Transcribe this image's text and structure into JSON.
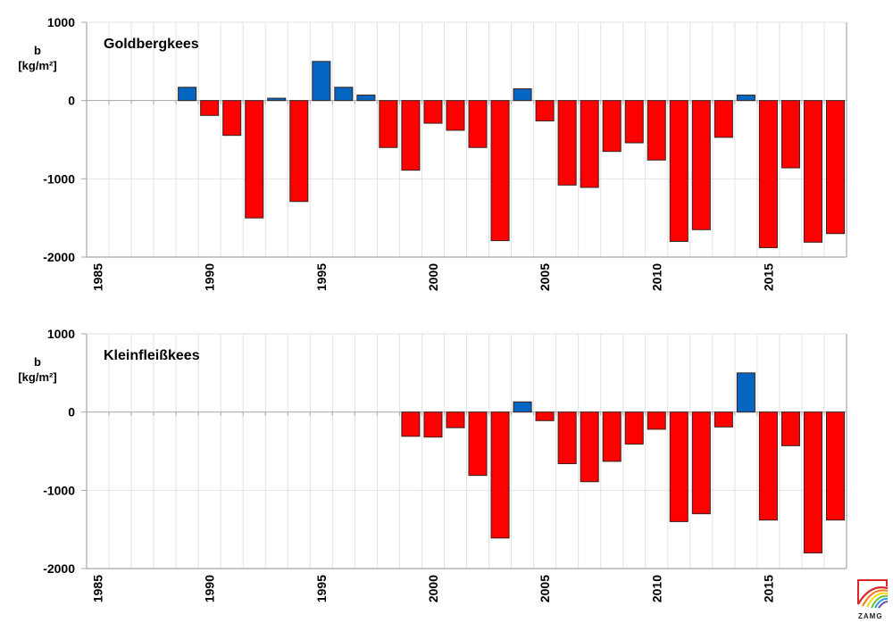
{
  "colors": {
    "positive": "#0566c2",
    "negative": "#ff0000",
    "bar_border": "#3a2020",
    "grid": "#e2e2e2",
    "axis": "#a6a6a6"
  },
  "logo": {
    "text": "ZAMG",
    "icon": "zamg-rainbow-logo-icon"
  },
  "chart_data": [
    {
      "type": "bar",
      "title": "Goldbergkees",
      "ylabel_line1": "b",
      "ylabel_line2": "[kg/m²]",
      "xlabel": "",
      "ylim": [
        -2000,
        1000
      ],
      "yticks": [
        1000,
        0,
        -1000,
        -2000
      ],
      "ytick_labels": [
        "1000",
        "0",
        "-1000",
        "-2000"
      ],
      "xtick_labels": [
        "1985",
        "1990",
        "1995",
        "2000",
        "2005",
        "2010",
        "2015"
      ],
      "grid": true,
      "categories": [
        1985,
        1986,
        1987,
        1988,
        1989,
        1990,
        1991,
        1992,
        1993,
        1994,
        1995,
        1996,
        1997,
        1998,
        1999,
        2000,
        2001,
        2002,
        2003,
        2004,
        2005,
        2006,
        2007,
        2008,
        2009,
        2010,
        2011,
        2012,
        2013,
        2014,
        2015,
        2016,
        2017,
        2018
      ],
      "values": [
        null,
        null,
        null,
        null,
        170,
        -190,
        -445,
        -1500,
        30,
        -1290,
        500,
        170,
        70,
        -600,
        -890,
        -290,
        -380,
        -600,
        -1790,
        150,
        -260,
        -1080,
        -1110,
        -650,
        -540,
        -760,
        -1800,
        -1650,
        -470,
        70,
        -1880,
        -860,
        -1810,
        -1700
      ]
    },
    {
      "type": "bar",
      "title": "Kleinfleißkees",
      "ylabel_line1": "b",
      "ylabel_line2": "[kg/m²]",
      "xlabel": "",
      "ylim": [
        -2000,
        1000
      ],
      "yticks": [
        1000,
        0,
        -1000,
        -2000
      ],
      "ytick_labels": [
        "1000",
        "0",
        "-1000",
        "-2000"
      ],
      "xtick_labels": [
        "1985",
        "1990",
        "1995",
        "2000",
        "2005",
        "2010",
        "2015"
      ],
      "grid": true,
      "categories": [
        1985,
        1986,
        1987,
        1988,
        1989,
        1990,
        1991,
        1992,
        1993,
        1994,
        1995,
        1996,
        1997,
        1998,
        1999,
        2000,
        2001,
        2002,
        2003,
        2004,
        2005,
        2006,
        2007,
        2008,
        2009,
        2010,
        2011,
        2012,
        2013,
        2014,
        2015,
        2016,
        2017,
        2018
      ],
      "values": [
        null,
        null,
        null,
        null,
        null,
        null,
        null,
        null,
        null,
        null,
        null,
        null,
        null,
        null,
        -310,
        -320,
        -200,
        -810,
        -1610,
        130,
        -110,
        -660,
        -890,
        -630,
        -410,
        -220,
        -1400,
        -1300,
        -190,
        500,
        -1380,
        -430,
        -1800,
        -1380
      ]
    }
  ]
}
